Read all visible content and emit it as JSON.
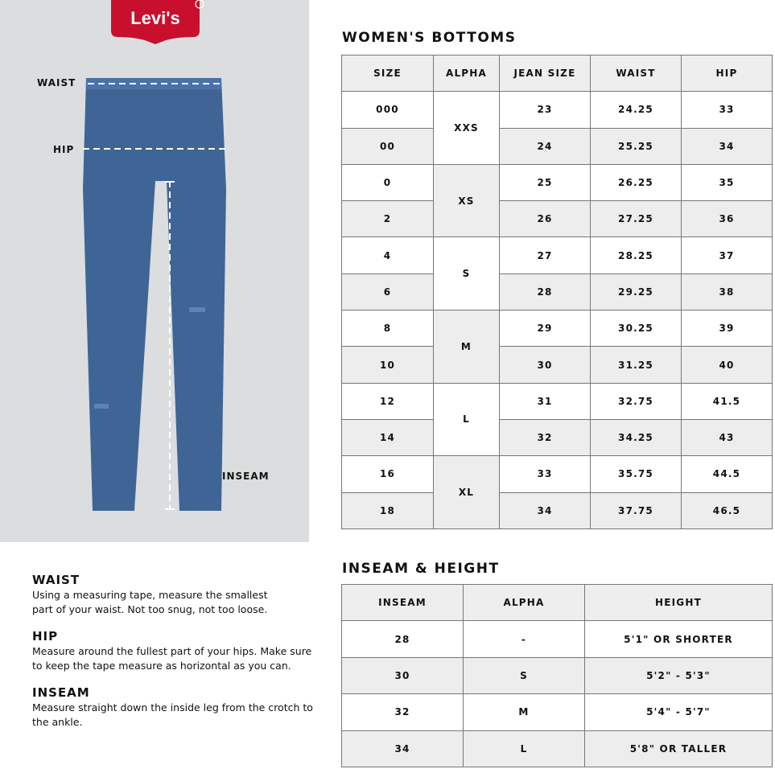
{
  "brand": {
    "logo_text": "Levi's",
    "color": "#c8102e"
  },
  "diagram": {
    "labels": {
      "waist": "WAIST",
      "hip": "HIP",
      "inseam": "INSEAM"
    }
  },
  "womens": {
    "title": "WOMEN'S BOTTOMS",
    "headers": [
      "SIZE",
      "ALPHA",
      "JEAN SIZE",
      "WAIST",
      "HIP"
    ],
    "rows": [
      {
        "size": "000",
        "alpha": "XXS",
        "jean": "23",
        "waist": "24.25",
        "hip": "33"
      },
      {
        "size": "00",
        "jean": "24",
        "waist": "25.25",
        "hip": "34"
      },
      {
        "size": "0",
        "alpha": "XS",
        "jean": "25",
        "waist": "26.25",
        "hip": "35"
      },
      {
        "size": "2",
        "jean": "26",
        "waist": "27.25",
        "hip": "36"
      },
      {
        "size": "4",
        "alpha": "S",
        "jean": "27",
        "waist": "28.25",
        "hip": "37"
      },
      {
        "size": "6",
        "jean": "28",
        "waist": "29.25",
        "hip": "38"
      },
      {
        "size": "8",
        "alpha": "M",
        "jean": "29",
        "waist": "30.25",
        "hip": "39"
      },
      {
        "size": "10",
        "jean": "30",
        "waist": "31.25",
        "hip": "40"
      },
      {
        "size": "12",
        "alpha": "L",
        "jean": "31",
        "waist": "32.75",
        "hip": "41.5"
      },
      {
        "size": "14",
        "jean": "32",
        "waist": "34.25",
        "hip": "43"
      },
      {
        "size": "16",
        "alpha": "XL",
        "jean": "33",
        "waist": "35.75",
        "hip": "44.5"
      },
      {
        "size": "18",
        "jean": "34",
        "waist": "37.75",
        "hip": "46.5"
      }
    ]
  },
  "inseam": {
    "title": "INSEAM & HEIGHT",
    "headers": [
      "INSEAM",
      "ALPHA",
      "HEIGHT"
    ],
    "rows": [
      {
        "inseam": "28",
        "alpha": "-",
        "height": "5'1\" OR SHORTER"
      },
      {
        "inseam": "30",
        "alpha": "S",
        "height": "5'2\" - 5'3\""
      },
      {
        "inseam": "32",
        "alpha": "M",
        "height": "5'4\" - 5'7\""
      },
      {
        "inseam": "34",
        "alpha": "L",
        "height": "5'8\" OR TALLER"
      }
    ]
  },
  "instructions": [
    {
      "title": "WAIST",
      "text": "Using a measuring tape, measure the smallest part of your waist. Not too snug, not too loose."
    },
    {
      "title": "HIP",
      "text": "Measure around the fullest part of your hips. Make sure to keep the tape measure as horizontal as you can."
    },
    {
      "title": "INSEAM",
      "text": "Measure straight down the inside leg from the crotch to the ankle."
    }
  ]
}
